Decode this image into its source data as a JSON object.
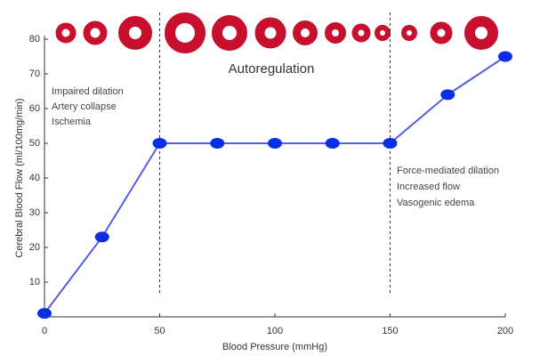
{
  "chart_data": {
    "type": "line",
    "x_label": "Blood Pressure (mmHg)",
    "y_label": "Cerebral Blood Flow (ml/100mg/min)",
    "x": [
      0,
      25,
      50,
      75,
      100,
      125,
      150,
      175,
      200
    ],
    "series": [
      {
        "color": "#5060e0",
        "values": [
          1,
          23,
          50,
          50,
          50,
          50,
          50,
          64,
          75
        ]
      }
    ],
    "marker_color": "#0a2ee6",
    "xlim": [
      0,
      200
    ],
    "xticks": [
      0,
      50,
      100,
      150,
      200
    ],
    "ylim": [
      0,
      80
    ],
    "yticks": [
      10,
      20,
      30,
      40,
      50,
      60,
      70,
      80
    ],
    "vlines": [
      50,
      150
    ],
    "annotations": [
      "Autoregulation",
      "Impaired dilation",
      "Artery collapse",
      "Ischemia",
      "Force-mediated dilation",
      "Increased flow",
      "Vasogenic edema"
    ]
  }
}
